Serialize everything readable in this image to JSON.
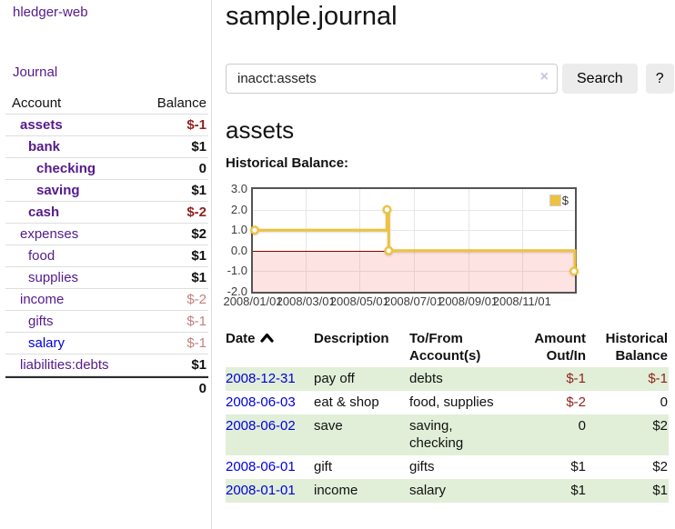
{
  "app": {
    "title": "hledger-web"
  },
  "sidebar": {
    "journal_link": "Journal",
    "accounts_table": {
      "headers": {
        "account": "Account",
        "balance": "Balance"
      },
      "rows": [
        {
          "name": "assets",
          "balance": "$-1"
        },
        {
          "name": "bank",
          "balance": "$1"
        },
        {
          "name": "checking",
          "balance": "0"
        },
        {
          "name": "saving",
          "balance": "$1"
        },
        {
          "name": "cash",
          "balance": "$-2"
        },
        {
          "name": "expenses",
          "balance": "$2"
        },
        {
          "name": "food",
          "balance": "$1"
        },
        {
          "name": "supplies",
          "balance": "$1"
        },
        {
          "name": "income",
          "balance": "$-2"
        },
        {
          "name": "gifts",
          "balance": "$-1"
        },
        {
          "name": "salary",
          "balance": "$-1"
        },
        {
          "name": "liabilities:debts",
          "balance": "$1"
        }
      ],
      "total": "0"
    }
  },
  "main": {
    "title": "sample.journal",
    "search": {
      "value": "inacct:assets",
      "clear_icon": "×",
      "button": "Search",
      "help": "?"
    },
    "account_heading": "assets",
    "chart_label": "Historical Balance:"
  },
  "chart_data": {
    "type": "line",
    "title": "Historical Balance",
    "step": true,
    "x_start": "2008-01-01",
    "x_range_days": 365,
    "ylim": [
      -2,
      3
    ],
    "y_ticks": [
      {
        "label": "3.0",
        "value": 3
      },
      {
        "label": "2.0",
        "value": 2
      },
      {
        "label": "1.0",
        "value": 1
      },
      {
        "label": "0.0",
        "value": 0
      },
      {
        "label": "-1.0",
        "value": -1
      },
      {
        "label": "-2.0",
        "value": -2
      }
    ],
    "x_ticks": [
      {
        "label": "2008/01/01",
        "date": "2008-01-01"
      },
      {
        "label": "2008/03/01",
        "date": "2008-03-01"
      },
      {
        "label": "2008/05/01",
        "date": "2008-05-01"
      },
      {
        "label": "2008/07/01",
        "date": "2008-07-01"
      },
      {
        "label": "2008/09/01",
        "date": "2008-09-01"
      },
      {
        "label": "2008/11/01",
        "date": "2008-11-01"
      }
    ],
    "series": [
      {
        "name": "$",
        "color": "#edc240",
        "points": [
          [
            "2008-01-01",
            1
          ],
          [
            "2008-06-01",
            2
          ],
          [
            "2008-06-03",
            0
          ],
          [
            "2008-12-31",
            -1
          ]
        ]
      }
    ],
    "legend_position": "top-right",
    "zero_line_color": "#8b0000",
    "negative_region_fill": "#fbdede"
  },
  "register_table": {
    "headers": [
      "Date",
      "Description",
      "To/From Account(s)",
      "Amount Out/In",
      "Historical Balance"
    ],
    "sort_icon": "chevron-up",
    "rows": [
      {
        "date": "2008-12-31",
        "description": "pay off",
        "tofrom": "debts",
        "amount": "$-1",
        "balance": "$-1"
      },
      {
        "date": "2008-06-03",
        "description": "eat & shop",
        "tofrom": "food, supplies",
        "amount": "$-2",
        "balance": "0"
      },
      {
        "date": "2008-06-02",
        "description": "save",
        "tofrom": "saving,\nchecking",
        "amount": "0",
        "balance": "$2"
      },
      {
        "date": "2008-06-01",
        "description": "gift",
        "tofrom": "gifts",
        "amount": "$1",
        "balance": "$2"
      },
      {
        "date": "2008-01-01",
        "description": "income",
        "tofrom": "salary",
        "amount": "$1",
        "balance": "$1"
      }
    ]
  },
  "colors": {
    "link_purple": "#551a8b",
    "link_blue": "#0000dd",
    "negative_strong": "#941f1f",
    "negative_soft": "#c4807e",
    "row_stripe_green": "#e1efd8",
    "chart_line_gold": "#edc240"
  }
}
